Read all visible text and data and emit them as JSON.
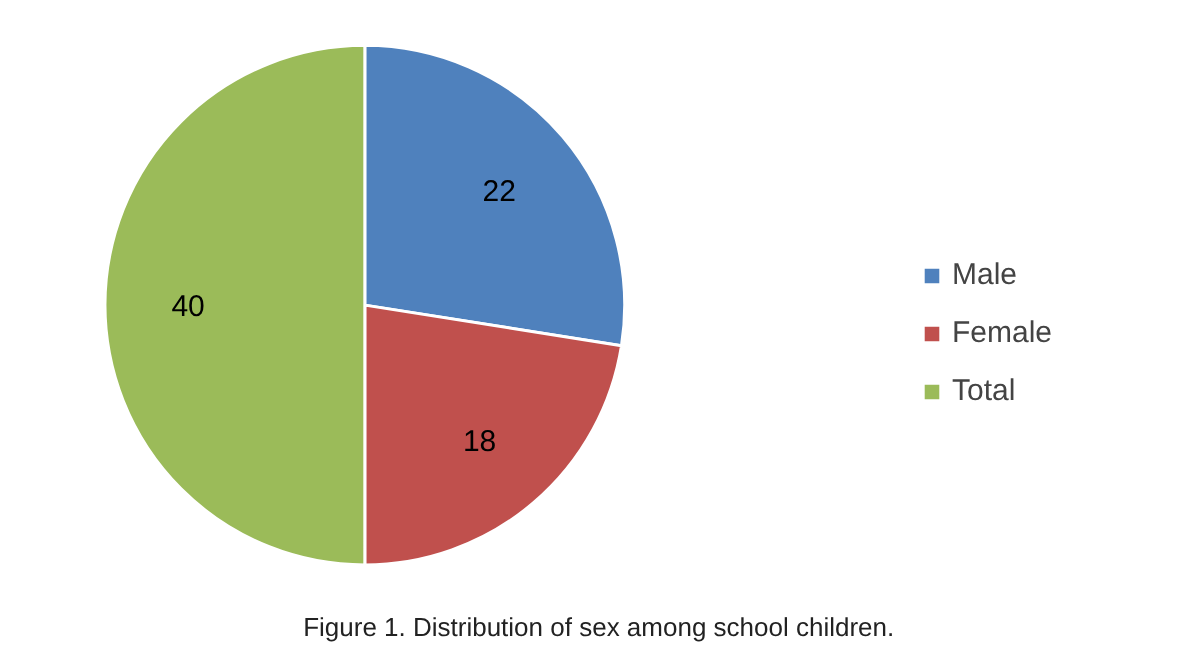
{
  "chart_data": {
    "type": "pie",
    "categories": [
      "Male",
      "Female",
      "Total"
    ],
    "values": [
      22,
      18,
      40
    ],
    "colors": [
      "#4f81bd",
      "#c0504d",
      "#9bbb59"
    ],
    "data_labels": true,
    "legend": "right",
    "annotations": [
      "Figure 1. Distribution of sex among school children."
    ]
  }
}
